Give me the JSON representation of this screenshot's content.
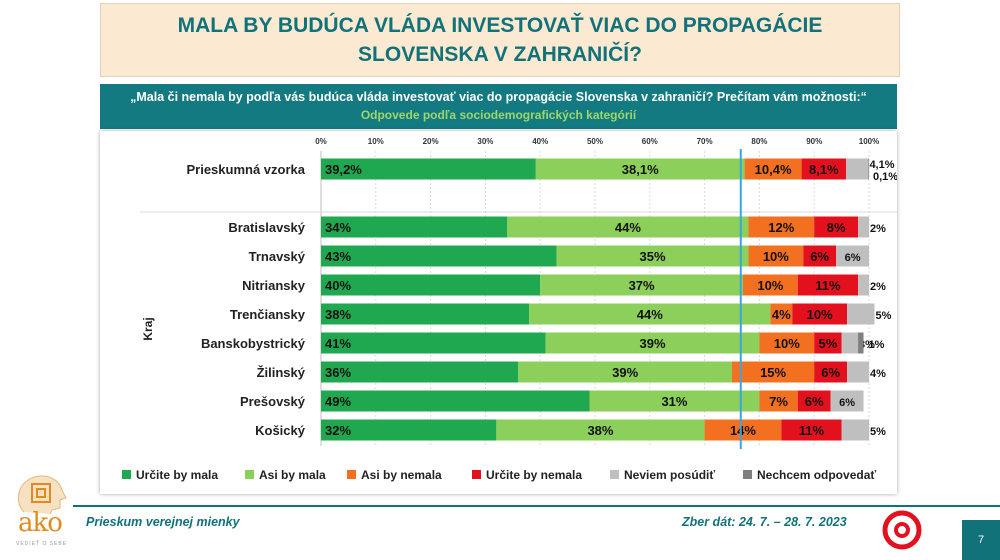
{
  "title": "MALA BY BUDÚCA VLÁDA INVESTOVAŤ VIAC DO PROPAGÁCIE SLOVENSKA V ZAHRANIČÍ?",
  "question": "„Mala či nemala by podľa vás budúca vláda investovať viac do propagácie Slovenska v zahraničí? Prečítam vám možnosti:“",
  "subtitle": "Odpovede podľa sociodemografických kategórií",
  "footer": {
    "left": "Prieskum verejnej mienky",
    "right": "Zber dát: 24. 7. – 28. 7. 2023",
    "page": "7",
    "logo_text": "ako",
    "logo_tagline": "VEDIEŤ O SEBE"
  },
  "colors": {
    "urcite_mala": "#1fa84f",
    "asi_mala": "#8ccf5a",
    "asi_nemala": "#f37021",
    "urcite_nemala": "#e3101e",
    "neviem": "#bfbfbf",
    "nechcem": "#7f7f7f",
    "accent": "#12727a",
    "reference_line": "#3aa6de"
  },
  "chart_data": {
    "type": "bar",
    "orientation": "horizontal",
    "stacked": true,
    "xlim": [
      0,
      100
    ],
    "x_ticks": [
      "0%",
      "10%",
      "20%",
      "30%",
      "40%",
      "50%",
      "60%",
      "70%",
      "80%",
      "90%",
      "100%"
    ],
    "group_label": "Kraj",
    "reference_line_x": 76.6,
    "legend_position": "bottom",
    "series": [
      {
        "name": "Určite by mala",
        "color": "#1fa84f"
      },
      {
        "name": "Asi by mala",
        "color": "#8ccf5a"
      },
      {
        "name": "Asi by nemala",
        "color": "#f37021"
      },
      {
        "name": "Určite by nemala",
        "color": "#e3101e"
      },
      {
        "name": "Neviem posúdiť",
        "color": "#bfbfbf"
      },
      {
        "name": "Nechcem odpovedať",
        "color": "#7f7f7f"
      }
    ],
    "rows": [
      {
        "label": "Prieskumná vzorka",
        "values": [
          39.2,
          38.1,
          10.4,
          8.1,
          4.1,
          0.1
        ],
        "labels": [
          "39,2%",
          "38,1%",
          "10,4%",
          "8,1%",
          "4,1%",
          "0,1%"
        ]
      },
      {
        "label": "Bratislavský",
        "values": [
          34,
          44,
          12,
          8,
          2,
          0
        ],
        "labels": [
          "34%",
          "44%",
          "12%",
          "8%",
          "2%",
          ""
        ]
      },
      {
        "label": "Trnavský",
        "values": [
          43,
          35,
          10,
          6,
          6,
          0
        ],
        "labels": [
          "43%",
          "35%",
          "10%",
          "6%",
          "6%",
          ""
        ]
      },
      {
        "label": "Nitriansky",
        "values": [
          40,
          37,
          10,
          11,
          2,
          0
        ],
        "labels": [
          "40%",
          "37%",
          "10%",
          "11%",
          "2%",
          ""
        ]
      },
      {
        "label": "Trenčiansky",
        "values": [
          38,
          44,
          4,
          10,
          5,
          0
        ],
        "labels": [
          "38%",
          "44%",
          "4%",
          "10%",
          "5%",
          ""
        ]
      },
      {
        "label": "Banskobystrický",
        "values": [
          41,
          39,
          10,
          5,
          3,
          1
        ],
        "labels": [
          "41%",
          "39%",
          "10%",
          "5%",
          "3%",
          "1%"
        ]
      },
      {
        "label": "Žilinský",
        "values": [
          36,
          39,
          15,
          6,
          4,
          0
        ],
        "labels": [
          "36%",
          "39%",
          "15%",
          "6%",
          "4%",
          ""
        ]
      },
      {
        "label": "Prešovský",
        "values": [
          49,
          31,
          7,
          6,
          6,
          0
        ],
        "labels": [
          "49%",
          "31%",
          "7%",
          "6%",
          "6%",
          ""
        ]
      },
      {
        "label": "Košický",
        "values": [
          32,
          38,
          14,
          11,
          5,
          0
        ],
        "labels": [
          "32%",
          "38%",
          "14%",
          "11%",
          "5%",
          ""
        ]
      }
    ]
  }
}
